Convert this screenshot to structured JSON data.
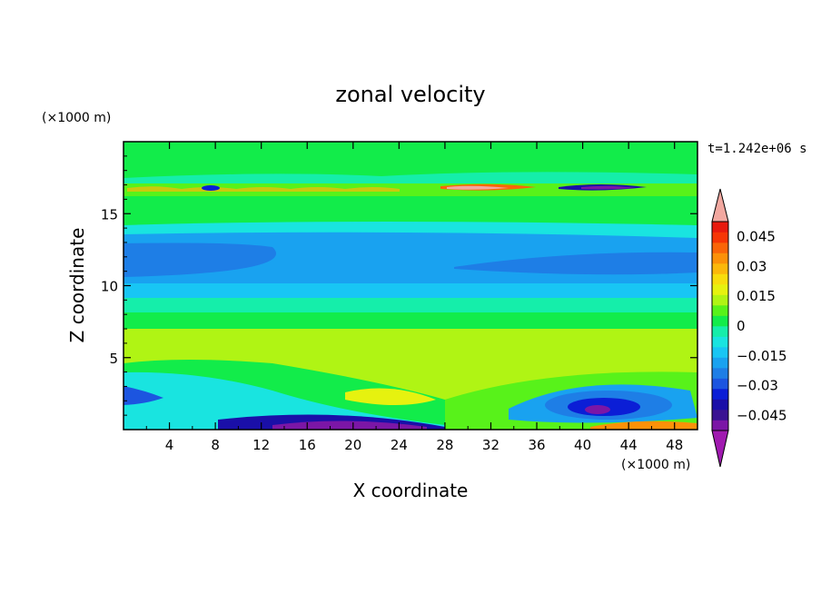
{
  "chart_data": {
    "type": "heatmap",
    "title": "zonal velocity",
    "xlabel": "X coordinate",
    "ylabel": "Z coordinate",
    "x_unit": "(×1000 m)",
    "y_unit": "(×1000 m)",
    "time_label": "t=1.242e+06 s",
    "xlim": [
      0,
      50
    ],
    "ylim": [
      0,
      20
    ],
    "x_ticks": [
      4,
      8,
      12,
      16,
      20,
      24,
      28,
      32,
      36,
      40,
      44,
      48
    ],
    "y_ticks": [
      5,
      10,
      15
    ],
    "colorbar": {
      "tick_labels": [
        "0.045",
        "0.03",
        "0.015",
        "0",
        "−0.015",
        "−0.03",
        "−0.045"
      ],
      "tick_values": [
        0.045,
        0.03,
        0.015,
        0,
        -0.015,
        -0.03,
        -0.045
      ],
      "range": [
        -0.0525,
        0.0525
      ],
      "levels": [
        -0.0525,
        -0.0475,
        -0.0425,
        -0.0375,
        -0.0325,
        -0.0275,
        -0.0225,
        -0.0175,
        -0.0125,
        -0.0075,
        -0.0025,
        0.0025,
        0.0075,
        0.0125,
        0.0175,
        0.0225,
        0.0275,
        0.0325,
        0.0375,
        0.0425,
        0.0475,
        0.0525
      ],
      "colors": [
        "#7b16a6",
        "#3a1292",
        "#1a0fa8",
        "#0b1ed6",
        "#1c55e0",
        "#1e7ee6",
        "#19a2f0",
        "#18c6f4",
        "#19e4e0",
        "#15eeaa",
        "#12ec4a",
        "#58f21a",
        "#b0f414",
        "#e6f20f",
        "#f8dd0c",
        "#fcb80a",
        "#fc9108",
        "#fa6508",
        "#f63606",
        "#e81a0e"
      ],
      "under_color": "#a01ab0",
      "over_color": "#f2a8a0"
    }
  }
}
